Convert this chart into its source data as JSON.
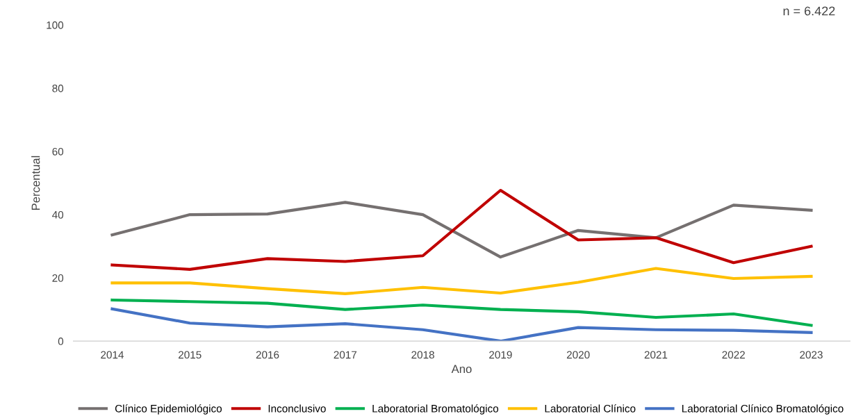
{
  "chart_data": {
    "type": "line",
    "xlabel": "Ano",
    "ylabel": "Percentual",
    "annotations": [
      "n = 6.422"
    ],
    "categories": [
      "2014",
      "2015",
      "2016",
      "2017",
      "2018",
      "2019",
      "2020",
      "2021",
      "2022",
      "2023"
    ],
    "series": [
      {
        "name": "Clínico Epidemiológico",
        "color": "#757070",
        "values": [
          33.6,
          40,
          40.2,
          43.9,
          40,
          26.6,
          35,
          32.7,
          43,
          41.4
        ]
      },
      {
        "name": "Inconclusivo",
        "color": "#c00000",
        "values": [
          24.1,
          22.7,
          26.1,
          25.2,
          27,
          47.7,
          32,
          32.7,
          24.8,
          30
        ]
      },
      {
        "name": "Laboratorial Bromatológico",
        "color": "#00b050",
        "values": [
          13,
          12.5,
          12,
          10,
          11.4,
          10,
          9.3,
          7.5,
          8.6,
          5
        ]
      },
      {
        "name": "Laboratorial Clínico",
        "color": "#ffc000",
        "values": [
          18.4,
          18.4,
          16.6,
          15,
          17,
          15.2,
          18.6,
          23,
          19.8,
          20.5
        ]
      },
      {
        "name": "Laboratorial Clínico Bromatológico",
        "color": "#4472c4",
        "values": [
          10.2,
          5.7,
          4.5,
          5.5,
          3.6,
          0,
          4.3,
          3.6,
          3.4,
          2.7
        ]
      }
    ],
    "ylim": [
      0,
      100
    ],
    "yticks": [
      0,
      20,
      40,
      60,
      80,
      100
    ],
    "legend": "bottom",
    "marker": "none",
    "line_style": "solid"
  }
}
